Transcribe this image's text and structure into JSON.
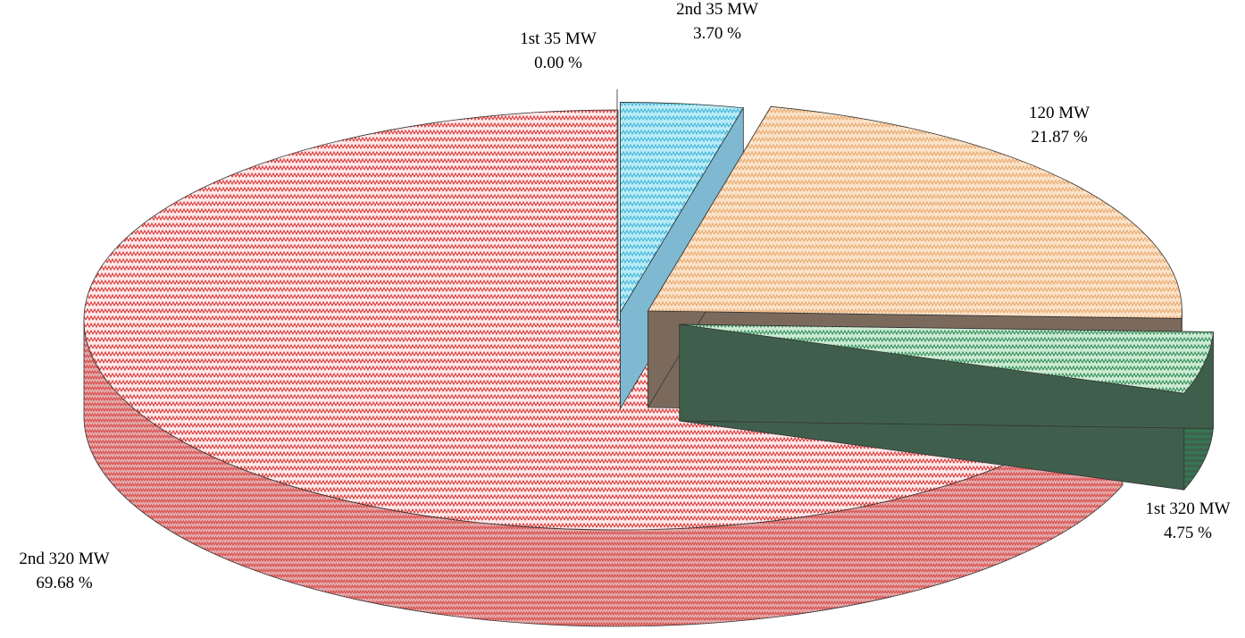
{
  "chart_data": {
    "type": "pie",
    "style": "3d-exploded",
    "slices": [
      {
        "name": "1st 35 MW",
        "value": 0.0,
        "label": "0.00 %",
        "top_color": "#ffffff",
        "side_color": "#ffffff",
        "line_color": "#ffffff"
      },
      {
        "name": "2nd 35 MW",
        "value": 3.7,
        "label": "3.70 %",
        "top_color": "#b9ecf7",
        "side_color": "#7fb9d1",
        "line_color": "#3fb3d9"
      },
      {
        "name": "120 MW",
        "value": 21.87,
        "label": "21.87 %",
        "top_color": "#fbe2c8",
        "side_color": "#7b6a5c",
        "line_color": "#e8a86c"
      },
      {
        "name": "1st 320 MW",
        "value": 4.75,
        "label": "4.75 %",
        "top_color": "#cdebd3",
        "side_color": "#3f5f4c",
        "line_color": "#2e8b57"
      },
      {
        "name": "2nd 320 MW",
        "value": 69.68,
        "label": "69.68 %",
        "top_color": "#fde9e9",
        "side_color": "#e2a9a9",
        "line_color": "#d93030"
      }
    ]
  }
}
